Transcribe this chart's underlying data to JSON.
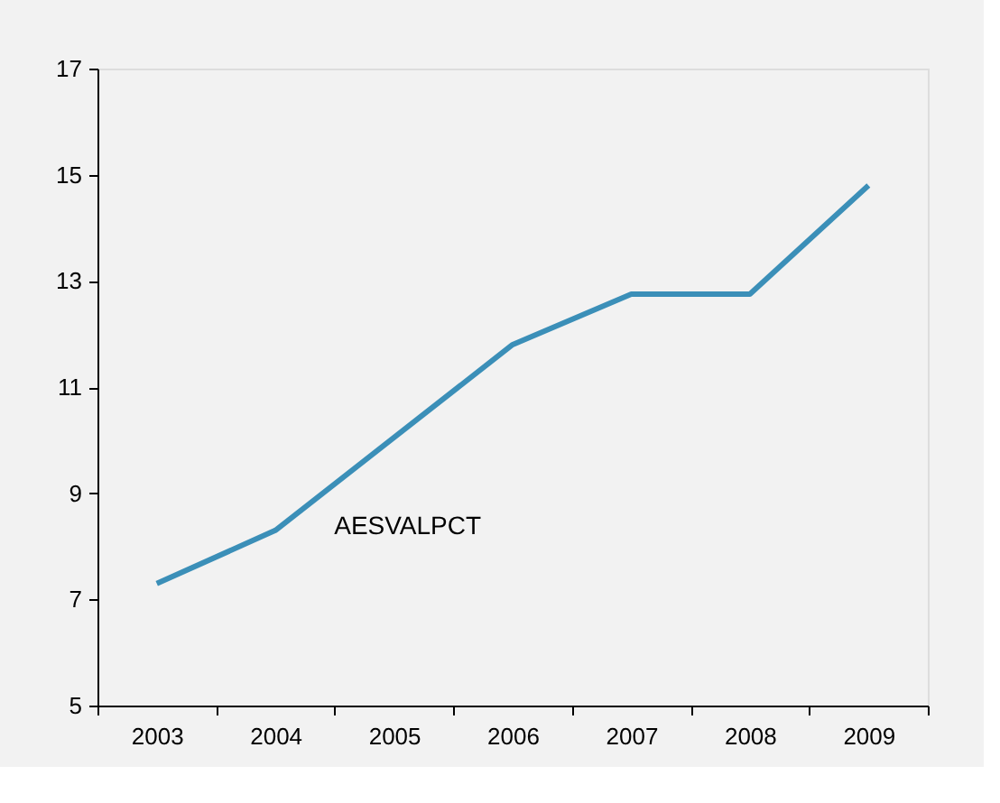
{
  "chart_data": {
    "type": "line",
    "categories": [
      "2003",
      "2004",
      "2005",
      "2006",
      "2007",
      "2008",
      "2009"
    ],
    "series": [
      {
        "name": "AESVALPCT",
        "color": "#3b8fb8",
        "values": [
          7.3,
          8.3,
          10.05,
          11.8,
          12.75,
          12.75,
          14.8
        ]
      }
    ],
    "ylim": [
      5,
      17
    ],
    "yticks": [
      5,
      7,
      9,
      11,
      13,
      15,
      17
    ],
    "grid": false,
    "marker": "none",
    "line_style": "solid"
  }
}
